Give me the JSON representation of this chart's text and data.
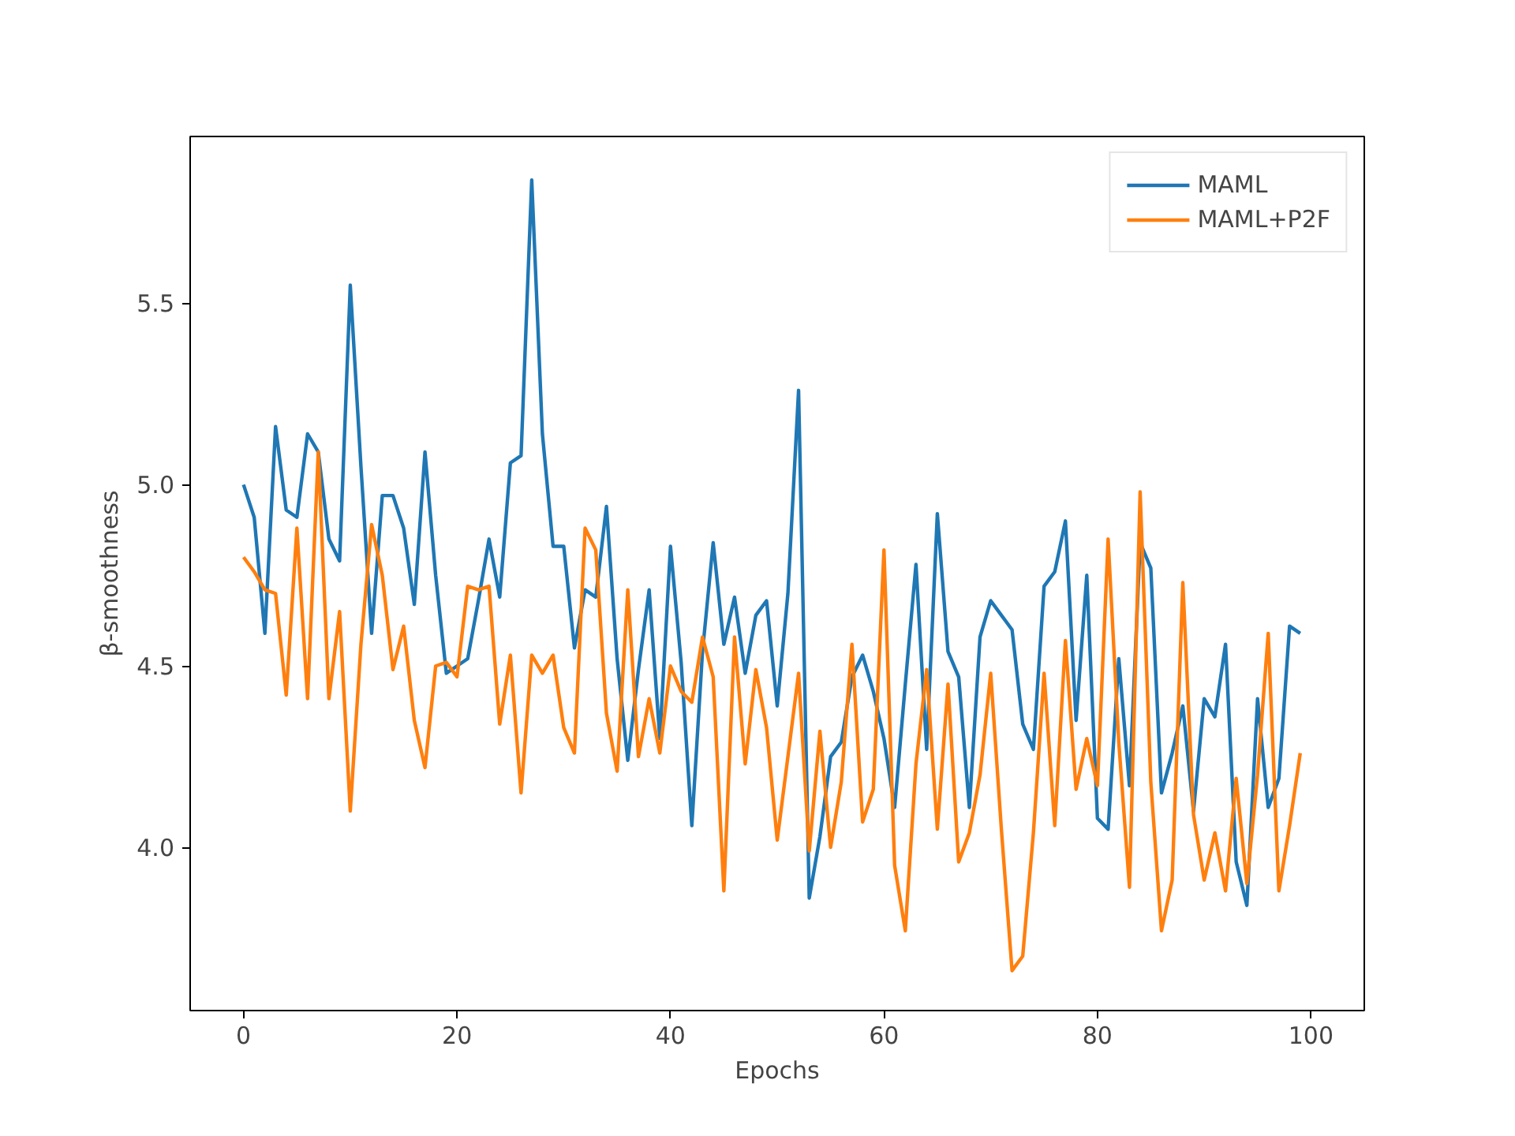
{
  "chart_data": {
    "type": "line",
    "xlabel": "Epochs",
    "ylabel": "β-smoothness",
    "x": [
      0,
      1,
      2,
      3,
      4,
      5,
      6,
      7,
      8,
      9,
      10,
      11,
      12,
      13,
      14,
      15,
      16,
      17,
      18,
      19,
      20,
      21,
      22,
      23,
      24,
      25,
      26,
      27,
      28,
      29,
      30,
      31,
      32,
      33,
      34,
      35,
      36,
      37,
      38,
      39,
      40,
      41,
      42,
      43,
      44,
      45,
      46,
      47,
      48,
      49,
      50,
      51,
      52,
      53,
      54,
      55,
      56,
      57,
      58,
      59,
      60,
      61,
      62,
      63,
      64,
      65,
      66,
      67,
      68,
      69,
      70,
      71,
      72,
      73,
      74,
      75,
      76,
      77,
      78,
      79,
      80,
      81,
      82,
      83,
      84,
      85,
      86,
      87,
      88,
      89,
      90,
      91,
      92,
      93,
      94,
      95,
      96,
      97,
      98,
      99
    ],
    "series": [
      {
        "name": "MAML",
        "color": "#1f77b4",
        "values": [
          5.0,
          4.91,
          4.59,
          5.16,
          4.93,
          4.91,
          5.14,
          5.09,
          4.85,
          4.79,
          5.55,
          5.05,
          4.59,
          4.97,
          4.97,
          4.88,
          4.67,
          5.09,
          4.75,
          4.48,
          4.5,
          4.52,
          4.68,
          4.85,
          4.69,
          5.06,
          5.08,
          5.84,
          5.14,
          4.83,
          4.83,
          4.55,
          4.71,
          4.69,
          4.94,
          4.52,
          4.24,
          4.49,
          4.71,
          4.3,
          4.83,
          4.51,
          4.06,
          4.54,
          4.84,
          4.56,
          4.69,
          4.48,
          4.64,
          4.68,
          4.39,
          4.7,
          5.26,
          3.86,
          4.03,
          4.25,
          4.29,
          4.47,
          4.53,
          4.43,
          4.3,
          4.11,
          4.45,
          4.78,
          4.27,
          4.92,
          4.54,
          4.47,
          4.11,
          4.58,
          4.68,
          4.64,
          4.6,
          4.34,
          4.27,
          4.72,
          4.76,
          4.9,
          4.35,
          4.75,
          4.08,
          4.05,
          4.52,
          4.17,
          4.84,
          4.77,
          4.15,
          4.26,
          4.39,
          4.1,
          4.41,
          4.36,
          4.56,
          3.96,
          3.84,
          4.41,
          4.11,
          4.19,
          4.61,
          4.59
        ]
      },
      {
        "name": "MAML+P2F",
        "color": "#ff7f0e",
        "values": [
          4.8,
          4.76,
          4.71,
          4.7,
          4.42,
          4.88,
          4.41,
          5.09,
          4.41,
          4.65,
          4.1,
          4.56,
          4.89,
          4.75,
          4.49,
          4.61,
          4.35,
          4.22,
          4.5,
          4.51,
          4.47,
          4.72,
          4.71,
          4.72,
          4.34,
          4.53,
          4.15,
          4.53,
          4.48,
          4.53,
          4.33,
          4.26,
          4.88,
          4.82,
          4.37,
          4.21,
          4.71,
          4.25,
          4.41,
          4.26,
          4.5,
          4.43,
          4.4,
          4.58,
          4.47,
          3.88,
          4.58,
          4.23,
          4.49,
          4.33,
          4.02,
          4.25,
          4.48,
          3.99,
          4.32,
          4.0,
          4.18,
          4.56,
          4.07,
          4.16,
          4.82,
          3.95,
          3.77,
          4.23,
          4.49,
          4.05,
          4.45,
          3.96,
          4.04,
          4.2,
          4.48,
          4.05,
          3.66,
          3.7,
          4.04,
          4.48,
          4.06,
          4.57,
          4.16,
          4.3,
          4.17,
          4.85,
          4.29,
          3.89,
          4.98,
          4.18,
          3.77,
          3.91,
          4.73,
          4.09,
          3.91,
          4.04,
          3.88,
          4.19,
          3.9,
          4.2,
          4.59,
          3.88,
          4.06,
          4.26
        ]
      }
    ],
    "xlim": [
      -5,
      105
    ],
    "ylim": [
      3.55,
      5.96
    ],
    "xticks": [
      0,
      20,
      40,
      60,
      80,
      100
    ],
    "yticks": [
      {
        "value": 4,
        "label": "4.0"
      },
      4.5,
      {
        "value": 5,
        "label": "5.0"
      },
      5.5
    ],
    "grid": false,
    "legend": "top right",
    "marker": "none",
    "line_style": "solid"
  }
}
